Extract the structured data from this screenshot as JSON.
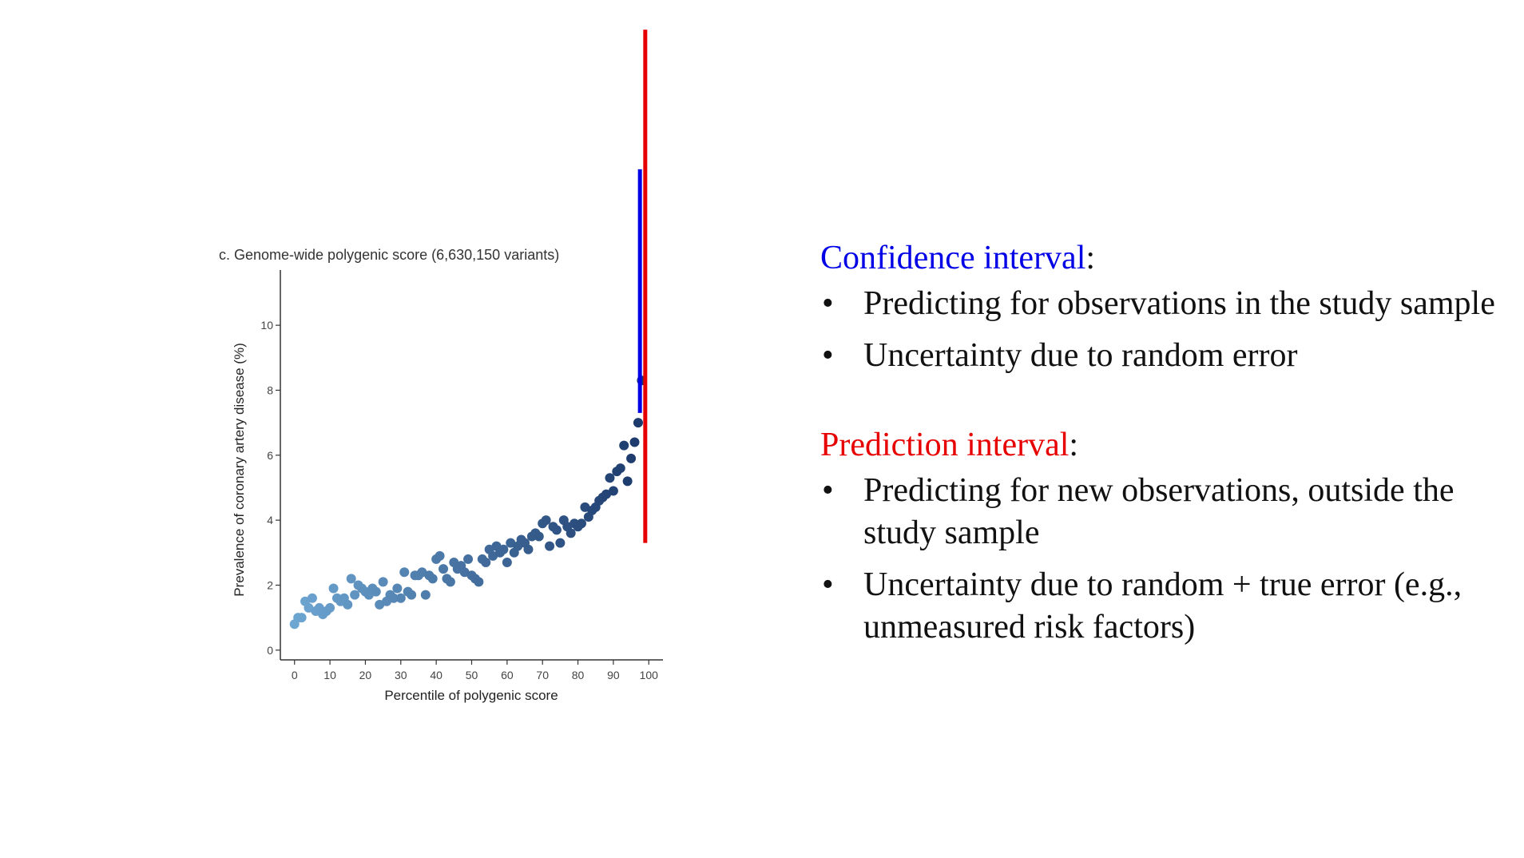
{
  "chart_data": {
    "type": "scatter",
    "title": "c. Genome-wide polygenic score (6,630,150 variants)",
    "xlabel": "Percentile of polygenic score",
    "ylabel": "Prevalence of coronary artery disease (%)",
    "xlim": [
      -4,
      104
    ],
    "ylim": [
      -0.3,
      11.7
    ],
    "xticks": [
      0,
      10,
      20,
      30,
      40,
      50,
      60,
      70,
      80,
      90,
      100
    ],
    "yticks": [
      0,
      2,
      4,
      6,
      8,
      10
    ],
    "grid": false,
    "x": [
      0,
      1,
      2,
      3,
      4,
      5,
      6,
      7,
      8,
      9,
      10,
      11,
      12,
      13,
      14,
      15,
      16,
      17,
      18,
      19,
      20,
      21,
      22,
      23,
      24,
      25,
      26,
      27,
      28,
      29,
      30,
      31,
      32,
      33,
      34,
      35,
      36,
      37,
      38,
      39,
      40,
      41,
      42,
      43,
      44,
      45,
      46,
      47,
      48,
      49,
      50,
      51,
      52,
      53,
      54,
      55,
      56,
      57,
      58,
      59,
      60,
      61,
      62,
      63,
      64,
      65,
      66,
      67,
      68,
      69,
      70,
      71,
      72,
      73,
      74,
      75,
      76,
      77,
      78,
      79,
      80,
      81,
      82,
      83,
      84,
      85,
      86,
      87,
      88,
      89,
      90,
      91,
      92,
      93,
      94,
      95,
      96,
      97,
      98
    ],
    "y": [
      0.8,
      1.0,
      1.0,
      1.5,
      1.3,
      1.6,
      1.2,
      1.3,
      1.1,
      1.2,
      1.3,
      1.9,
      1.6,
      1.5,
      1.6,
      1.4,
      2.2,
      1.7,
      2.0,
      1.9,
      1.8,
      1.7,
      1.9,
      1.8,
      1.4,
      2.1,
      1.5,
      1.7,
      1.6,
      1.9,
      1.6,
      2.4,
      1.8,
      1.7,
      2.3,
      2.3,
      2.4,
      1.7,
      2.3,
      2.2,
      2.8,
      2.9,
      2.5,
      2.2,
      2.1,
      2.7,
      2.5,
      2.6,
      2.4,
      2.8,
      2.3,
      2.2,
      2.1,
      2.8,
      2.7,
      3.1,
      2.9,
      3.2,
      3.0,
      3.1,
      2.7,
      3.3,
      3.0,
      3.2,
      3.4,
      3.3,
      3.1,
      3.5,
      3.6,
      3.5,
      3.9,
      4.0,
      3.2,
      3.8,
      3.7,
      3.3,
      4.0,
      3.8,
      3.6,
      3.9,
      3.8,
      3.9,
      4.4,
      4.1,
      4.3,
      4.4,
      4.6,
      4.7,
      4.8,
      5.3,
      4.9,
      5.5,
      5.6,
      6.3,
      5.2,
      5.9,
      6.4,
      7.0,
      8.3
    ],
    "confidence_interval": {
      "name": "Confidence interval",
      "x": 97.5,
      "low": 7.3,
      "high": 14.8,
      "color": "#0000e6"
    },
    "prediction_interval": {
      "name": "Prediction interval",
      "x": 99,
      "low": 3.3,
      "high": 19.1,
      "color": "#e60000"
    }
  },
  "colors": {
    "point_light": "#6ea6d2",
    "point_dark": "#1c3a6c",
    "confidence": "#0000e6",
    "prediction": "#e60000",
    "axis": "#333333"
  },
  "confidence": {
    "heading": "Confidence interval",
    "colon": ":",
    "bullet_symbol": "•",
    "bullets": [
      "Predicting for observations in the study sample",
      "Uncertainty due to random error"
    ]
  },
  "prediction": {
    "heading": "Prediction interval",
    "colon": ":",
    "bullet_symbol": "•",
    "bullets": [
      "Predicting for new observations, outside the study sample",
      "Uncertainty due to random + true error (e.g., unmeasured risk factors)"
    ]
  }
}
